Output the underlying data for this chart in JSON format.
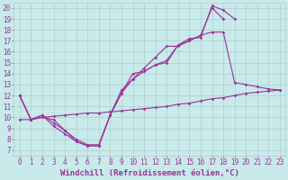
{
  "xlabel": "Windchill (Refroidissement éolien,°C)",
  "xlim": [
    -0.5,
    23.5
  ],
  "ylim": [
    6.5,
    20.5
  ],
  "xticks": [
    0,
    1,
    2,
    3,
    4,
    5,
    6,
    7,
    8,
    9,
    10,
    11,
    12,
    13,
    14,
    15,
    16,
    17,
    18,
    19,
    20,
    21,
    22,
    23
  ],
  "yticks": [
    7,
    8,
    9,
    10,
    11,
    12,
    13,
    14,
    15,
    16,
    17,
    18,
    19,
    20
  ],
  "bg_color": "#c8eaea",
  "grid_color": "#b0cccc",
  "line_color": "#993399",
  "lines": [
    {
      "x": [
        0,
        1,
        2,
        3,
        4,
        5,
        6,
        7,
        8,
        9,
        10,
        11,
        12,
        13,
        14,
        15,
        16,
        17,
        18,
        19
      ],
      "y": [
        12.0,
        9.8,
        10.2,
        9.2,
        8.5,
        7.8,
        7.4,
        7.4,
        10.2,
        12.2,
        13.5,
        14.2,
        14.8,
        15.0,
        16.6,
        17.2,
        17.3,
        20.2,
        19.8,
        19.0
      ]
    },
    {
      "x": [
        0,
        1,
        2,
        3,
        4,
        5,
        6,
        7,
        8,
        9,
        10,
        11,
        12,
        13,
        14,
        15,
        16,
        17,
        18,
        19,
        20,
        21,
        22,
        23
      ],
      "y": [
        12.0,
        9.8,
        10.0,
        9.8,
        8.8,
        8.0,
        7.5,
        7.5,
        10.2,
        12.2,
        14.0,
        14.2,
        14.8,
        15.2,
        16.6,
        17.0,
        17.5,
        17.8,
        17.8,
        13.2,
        13.0,
        12.8,
        12.6,
        12.5
      ]
    },
    {
      "x": [
        0,
        1,
        2,
        3,
        4,
        5,
        6,
        7,
        8,
        9,
        10,
        11,
        12,
        13,
        14,
        15,
        16,
        17,
        18,
        19,
        20,
        21,
        22,
        23
      ],
      "y": [
        9.8,
        9.8,
        10.0,
        10.1,
        10.2,
        10.3,
        10.4,
        10.4,
        10.5,
        10.6,
        10.7,
        10.8,
        10.9,
        11.0,
        11.2,
        11.3,
        11.5,
        11.7,
        11.8,
        12.0,
        12.2,
        12.3,
        12.4,
        12.5
      ]
    },
    {
      "x": [
        0,
        1,
        2,
        3,
        4,
        5,
        6,
        7,
        8,
        9,
        10,
        11,
        12,
        13,
        14,
        15,
        16,
        17,
        18
      ],
      "y": [
        12.0,
        9.8,
        10.2,
        9.5,
        8.8,
        7.8,
        7.4,
        7.4,
        10.2,
        12.5,
        13.5,
        14.5,
        15.5,
        16.5,
        16.5,
        17.0,
        17.5,
        20.0,
        19.0
      ]
    }
  ],
  "font_color": "#993399",
  "tick_fontsize": 5.5,
  "label_fontsize": 6.5
}
